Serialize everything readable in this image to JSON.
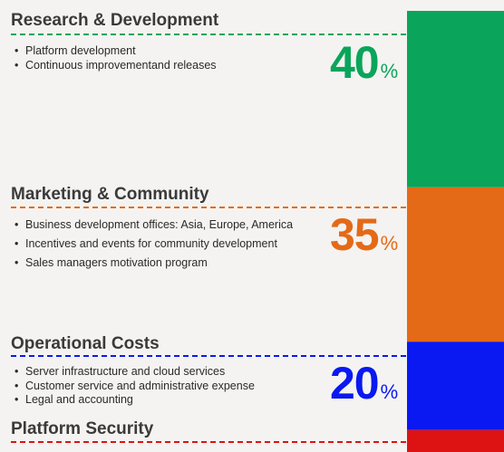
{
  "chart_data": {
    "type": "bar",
    "stacked": true,
    "orientation": "vertical",
    "categories": [
      "Research & Development",
      "Marketing & Community",
      "Operational Costs",
      "Platform Security"
    ],
    "values": [
      40,
      35,
      20,
      5
    ],
    "unit": "%",
    "colors": [
      "#0aa55a",
      "#e46a17",
      "#0a18f2",
      "#dd1313"
    ],
    "segments": [
      {
        "title": "Research & Development",
        "percent_label": "40",
        "percent_sign": "%",
        "color": "#0aa55a",
        "divider_color": "#0aa55a",
        "bullets": [
          "Platform development",
          "Continuous improvementand releases"
        ]
      },
      {
        "title": "Marketing & Community",
        "percent_label": "35",
        "percent_sign": "%",
        "color": "#e46a17",
        "divider_color": "#e46a17",
        "bullets": [
          "Business development offices: Asia, Europe, America",
          "Incentives and events for community development",
          "Sales managers motivation program"
        ]
      },
      {
        "title": "Operational Costs",
        "percent_label": "20",
        "percent_sign": "%",
        "color": "#0a18f2",
        "divider_color": "#0a18f2",
        "bullets": [
          "Server infrastructure and cloud services",
          "Customer service and administrative expense",
          "Legal and accounting"
        ]
      },
      {
        "title": "Platform Security",
        "percent_label": "",
        "percent_sign": "",
        "color": "#dd1313",
        "divider_color": "#dd1313",
        "bullets": []
      }
    ]
  }
}
